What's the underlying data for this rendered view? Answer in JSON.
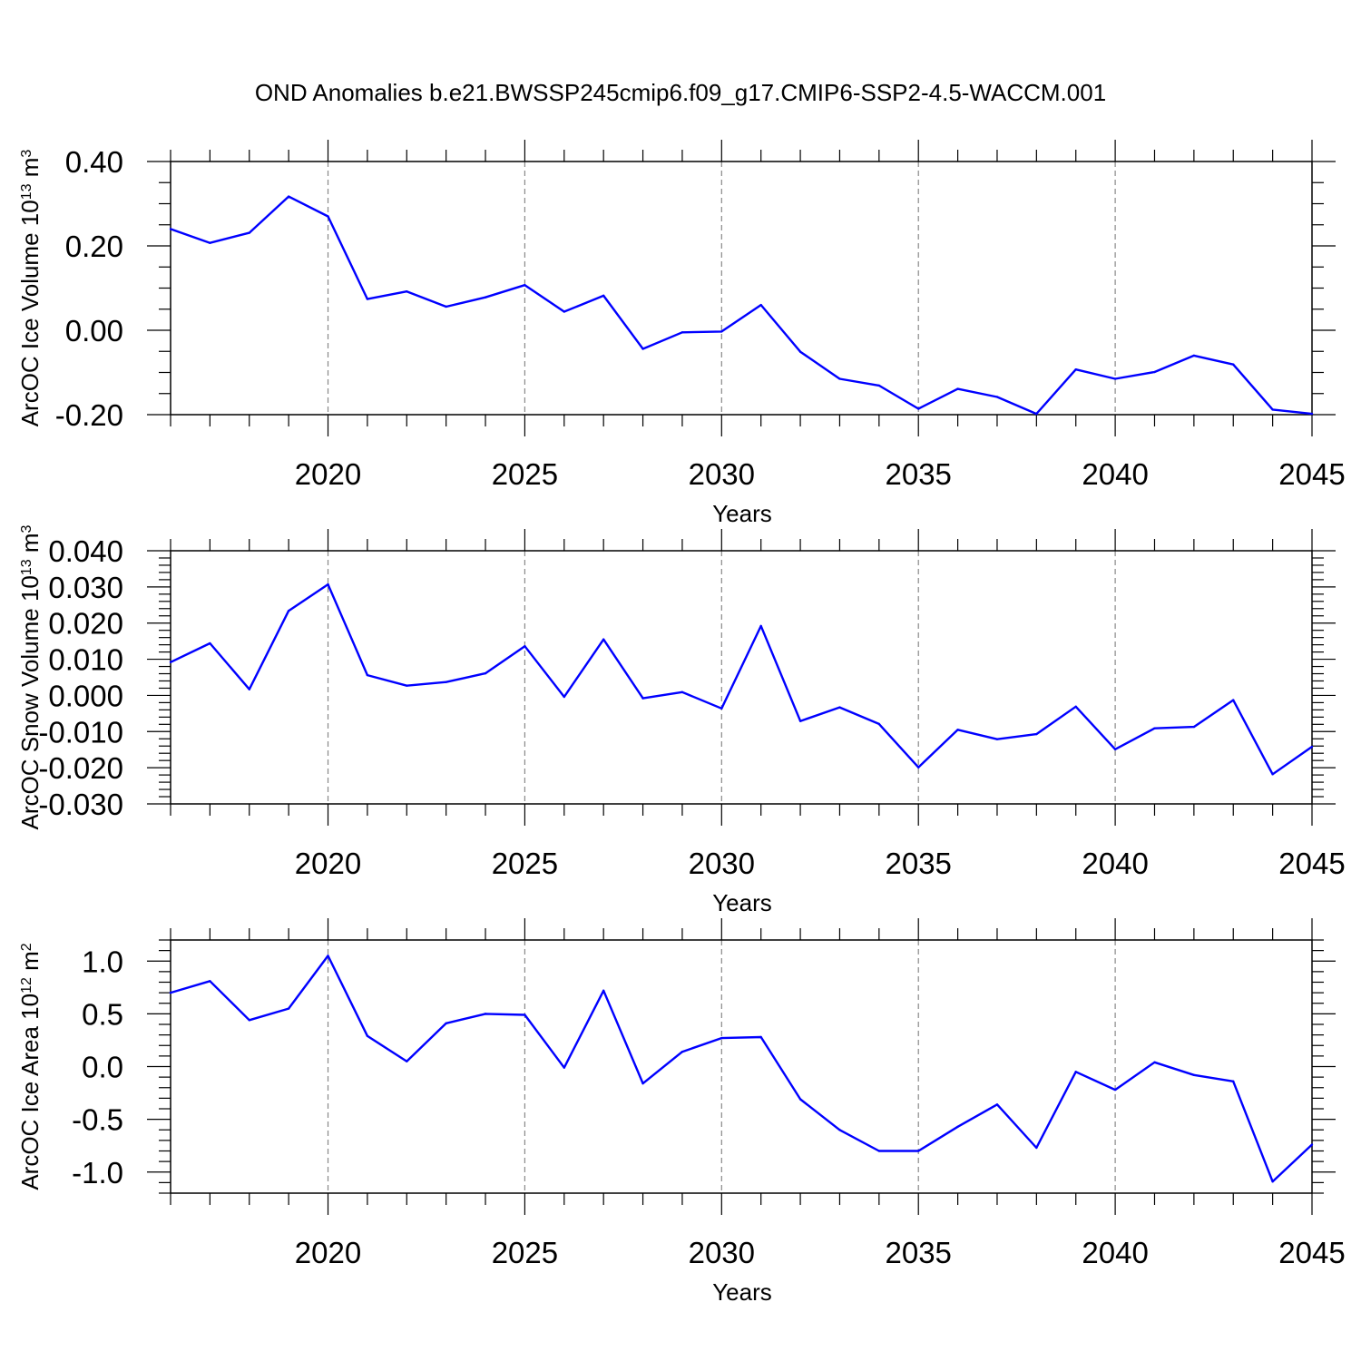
{
  "title": "OND Anomalies b.e21.BWSSP245cmip6.f09_g17.CMIP6-SSP2-4.5-WACCM.001",
  "line_color": "#0000ff",
  "chart_data": [
    {
      "type": "line",
      "ylabel": {
        "text": "ArcOC Ice Volume 10",
        "exp": "13",
        "unit": " m",
        "unit_exp": "3"
      },
      "xlabel": "Years",
      "xlim": [
        2016,
        2045
      ],
      "ylim": [
        -0.2,
        0.4
      ],
      "x_ticks": [
        "2020",
        "2025",
        "2030",
        "2035",
        "2040",
        "2045"
      ],
      "y_ticks": [
        "-0.20",
        "0.00",
        "0.20",
        "0.40"
      ],
      "x_minor_step": 1,
      "y_minor_step": 0.05,
      "grid": "dashed vertical lines at major x ticks",
      "x": [
        2016,
        2017,
        2018,
        2019,
        2020,
        2021,
        2022,
        2023,
        2024,
        2025,
        2026,
        2027,
        2028,
        2029,
        2030,
        2031,
        2032,
        2033,
        2034,
        2035,
        2036,
        2037,
        2038,
        2039,
        2040,
        2041,
        2042,
        2043,
        2044,
        2045
      ],
      "values": [
        0.24,
        0.207,
        0.231,
        0.317,
        0.27,
        0.074,
        0.092,
        0.056,
        0.078,
        0.107,
        0.044,
        0.082,
        -0.044,
        -0.005,
        -0.003,
        0.06,
        -0.051,
        -0.115,
        -0.131,
        -0.186,
        -0.139,
        -0.158,
        -0.198,
        -0.093,
        -0.115,
        -0.099,
        -0.06,
        -0.081,
        -0.188,
        -0.198
      ]
    },
    {
      "type": "line",
      "ylabel": {
        "text": "ArcOC Snow Volume 10",
        "exp": "13",
        "unit": " m",
        "unit_exp": "3"
      },
      "xlabel": "Years",
      "xlim": [
        2016,
        2045
      ],
      "ylim": [
        -0.03,
        0.04
      ],
      "x_ticks": [
        "2020",
        "2025",
        "2030",
        "2035",
        "2040",
        "2045"
      ],
      "y_ticks": [
        "-0.030",
        "-0.020",
        "-0.010",
        "0.000",
        "0.010",
        "0.020",
        "0.030",
        "0.040"
      ],
      "x_minor_step": 1,
      "y_minor_step": 0.002,
      "grid": "dashed vertical lines at major x ticks",
      "x": [
        2016,
        2017,
        2018,
        2019,
        2020,
        2021,
        2022,
        2023,
        2024,
        2025,
        2026,
        2027,
        2028,
        2029,
        2030,
        2031,
        2032,
        2033,
        2034,
        2035,
        2036,
        2037,
        2038,
        2039,
        2040,
        2041,
        2042,
        2043,
        2044,
        2045
      ],
      "values": [
        0.0092,
        0.0144,
        0.0017,
        0.0234,
        0.0307,
        0.0056,
        0.0027,
        0.0037,
        0.0061,
        0.0136,
        -0.0004,
        0.0155,
        -0.0008,
        0.0009,
        -0.0036,
        0.0192,
        -0.0071,
        -0.0033,
        -0.0079,
        -0.0199,
        -0.0095,
        -0.0121,
        -0.0107,
        -0.0031,
        -0.0149,
        -0.0091,
        -0.0087,
        -0.0013,
        -0.0218,
        -0.0142
      ]
    },
    {
      "type": "line",
      "ylabel": {
        "text": "ArcOC Ice Area 10",
        "exp": "12",
        "unit": " m",
        "unit_exp": "2"
      },
      "xlabel": "Years",
      "xlim": [
        2016,
        2045
      ],
      "ylim": [
        -1.2,
        1.2
      ],
      "x_ticks": [
        "2020",
        "2025",
        "2030",
        "2035",
        "2040",
        "2045"
      ],
      "y_ticks": [
        "-1.0",
        "-0.5",
        "0.0",
        "0.5",
        "1.0"
      ],
      "x_minor_step": 1,
      "y_minor_step": 0.1,
      "grid": "dashed vertical lines at major x ticks",
      "x": [
        2016,
        2017,
        2018,
        2019,
        2020,
        2021,
        2022,
        2023,
        2024,
        2025,
        2026,
        2027,
        2028,
        2029,
        2030,
        2031,
        2032,
        2033,
        2034,
        2035,
        2036,
        2037,
        2038,
        2039,
        2040,
        2041,
        2042,
        2043,
        2044,
        2045
      ],
      "values": [
        0.7,
        0.81,
        0.44,
        0.55,
        1.05,
        0.29,
        0.05,
        0.41,
        0.5,
        0.49,
        -0.01,
        0.72,
        -0.16,
        0.14,
        0.27,
        0.28,
        -0.31,
        -0.6,
        -0.8,
        -0.8,
        -0.57,
        -0.36,
        -0.77,
        -0.05,
        -0.22,
        0.04,
        -0.08,
        -0.14,
        -1.09,
        -0.74
      ]
    }
  ]
}
